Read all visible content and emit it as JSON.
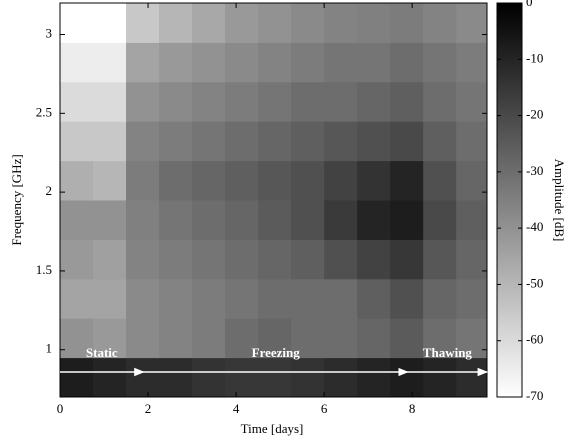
{
  "chart_data": {
    "type": "heatmap",
    "xlabel": "Time [days]",
    "ylabel": "Frequency [GHz]",
    "colorbar_label": "Amplitude [dB]",
    "colormap": [
      "#ffffff",
      "#000000"
    ],
    "x": [
      0.375,
      1.125,
      1.875,
      2.625,
      3.375,
      4.125,
      4.875,
      5.625,
      6.375,
      7.125,
      7.875,
      8.625,
      9.375
    ],
    "y": [
      0.825,
      1.075,
      1.325,
      1.575,
      1.825,
      2.075,
      2.325,
      2.575,
      2.825,
      3.075
    ],
    "z": [
      [
        -8,
        -10,
        -12,
        -12,
        -14,
        -15,
        -15,
        -14,
        -12,
        -10,
        -8,
        -10,
        -12
      ],
      [
        -40,
        -42,
        -38,
        -36,
        -34,
        -30,
        -28,
        -30,
        -30,
        -28,
        -25,
        -30,
        -32
      ],
      [
        -45,
        -45,
        -38,
        -36,
        -34,
        -32,
        -30,
        -30,
        -30,
        -26,
        -22,
        -28,
        -30
      ],
      [
        -42,
        -44,
        -36,
        -34,
        -32,
        -30,
        -28,
        -26,
        -22,
        -18,
        -15,
        -24,
        -28
      ],
      [
        -40,
        -40,
        -35,
        -32,
        -30,
        -28,
        -25,
        -22,
        -16,
        -10,
        -8,
        -20,
        -26
      ],
      [
        -48,
        -50,
        -34,
        -30,
        -28,
        -26,
        -24,
        -22,
        -18,
        -14,
        -10,
        -22,
        -28
      ],
      [
        -55,
        -55,
        -36,
        -34,
        -32,
        -30,
        -28,
        -26,
        -24,
        -22,
        -20,
        -26,
        -30
      ],
      [
        -60,
        -60,
        -40,
        -38,
        -36,
        -34,
        -32,
        -30,
        -30,
        -28,
        -26,
        -30,
        -32
      ],
      [
        -65,
        -65,
        -45,
        -42,
        -40,
        -38,
        -36,
        -34,
        -32,
        -32,
        -30,
        -32,
        -34
      ],
      [
        -70,
        -70,
        -55,
        -50,
        -46,
        -42,
        -40,
        -38,
        -36,
        -35,
        -34,
        -36,
        -38
      ]
    ],
    "xlim": [
      0,
      9.7
    ],
    "ylim": [
      0.7,
      3.2
    ],
    "zlim": [
      -70,
      0
    ],
    "xticks": [
      0,
      2,
      4,
      6,
      8
    ],
    "yticks": [
      1,
      1.5,
      2,
      2.5,
      3
    ],
    "zticks": [
      0,
      -10,
      -20,
      -30,
      -40,
      -50,
      -60,
      -70
    ],
    "phases": [
      {
        "name": "Static",
        "start": 0,
        "end": 1.9
      },
      {
        "name": "Freezing",
        "start": 1.9,
        "end": 7.9
      },
      {
        "name": "Thawing",
        "start": 7.9,
        "end": 9.7
      }
    ]
  }
}
